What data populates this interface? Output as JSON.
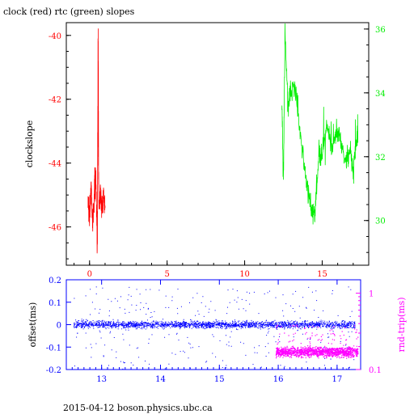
{
  "title": "clock (red) rtc (green) slopes",
  "footer": "2015-04-12 boson.physics.ubc.ca",
  "colors": {
    "clock": "#ff0000",
    "rtc": "#00ee00",
    "offset": "#0000ff",
    "rndtrip": "#ff00ff",
    "axis": "#000000"
  },
  "chart_data": [
    {
      "type": "line",
      "ylabel": "clockslope",
      "right_ylabel": "",
      "xlim": [
        -1.5,
        18
      ],
      "ylim": [
        -47.2,
        -39.6
      ],
      "right_ylim": [
        28.6,
        36.2
      ],
      "xticks": [
        0,
        5,
        10,
        15
      ],
      "yticks": [
        -46,
        -44,
        -42,
        -40
      ],
      "right_yticks": [
        30,
        32,
        34,
        36
      ],
      "series": [
        {
          "axis": "left",
          "x": [
            -0.1,
            0,
            0.1,
            0.2,
            0.3,
            0.4,
            0.5,
            0.55,
            0.6,
            0.7,
            0.8,
            0.9,
            1.0
          ],
          "y": [
            -45.2,
            -45.8,
            -44.6,
            -46.2,
            -45.0,
            -44.2,
            -46.8,
            -40.0,
            -45.4,
            -44.8,
            -45.5,
            -45.0,
            -45.3
          ]
        },
        {
          "axis": "right",
          "x": [
            12.4,
            12.5,
            12.6,
            12.8,
            13.0,
            13.3,
            13.6,
            13.9,
            14.2,
            14.5,
            14.8,
            15.0,
            15.3,
            15.6,
            15.9,
            16.2,
            16.5,
            16.8,
            17.0,
            17.2,
            17.3
          ],
          "y": [
            33.8,
            31.3,
            35.9,
            33.5,
            34.2,
            34.0,
            32.6,
            31.5,
            30.6,
            30.1,
            32.1,
            32.0,
            33.1,
            32.2,
            32.8,
            32.5,
            31.8,
            32.3,
            31.5,
            32.4,
            32.8
          ]
        }
      ]
    },
    {
      "type": "scatter",
      "ylabel": "offset(ms)",
      "right_ylabel": "rnd-trip(ms)",
      "xlim": [
        12.4,
        17.4
      ],
      "ylim": [
        -0.2,
        0.2
      ],
      "right_ylim": [
        0.1,
        1.5
      ],
      "right_scale": "log",
      "xticks": [
        13,
        14,
        15,
        16,
        17
      ],
      "yticks": [
        -0.2,
        -0.1,
        0,
        0.1,
        0.2
      ],
      "ytick_labels": [
        "-0.2",
        "-0.1",
        "0",
        "0.1",
        "0.2"
      ],
      "right_yticks": [
        0.1,
        1
      ],
      "series": [
        {
          "name": "offset",
          "y_center": 0.0,
          "y_band": 0.015
        },
        {
          "name": "rnd-trip",
          "x_start": 15.95,
          "x_end": 17.35,
          "y_center": 0.17
        }
      ]
    }
  ]
}
